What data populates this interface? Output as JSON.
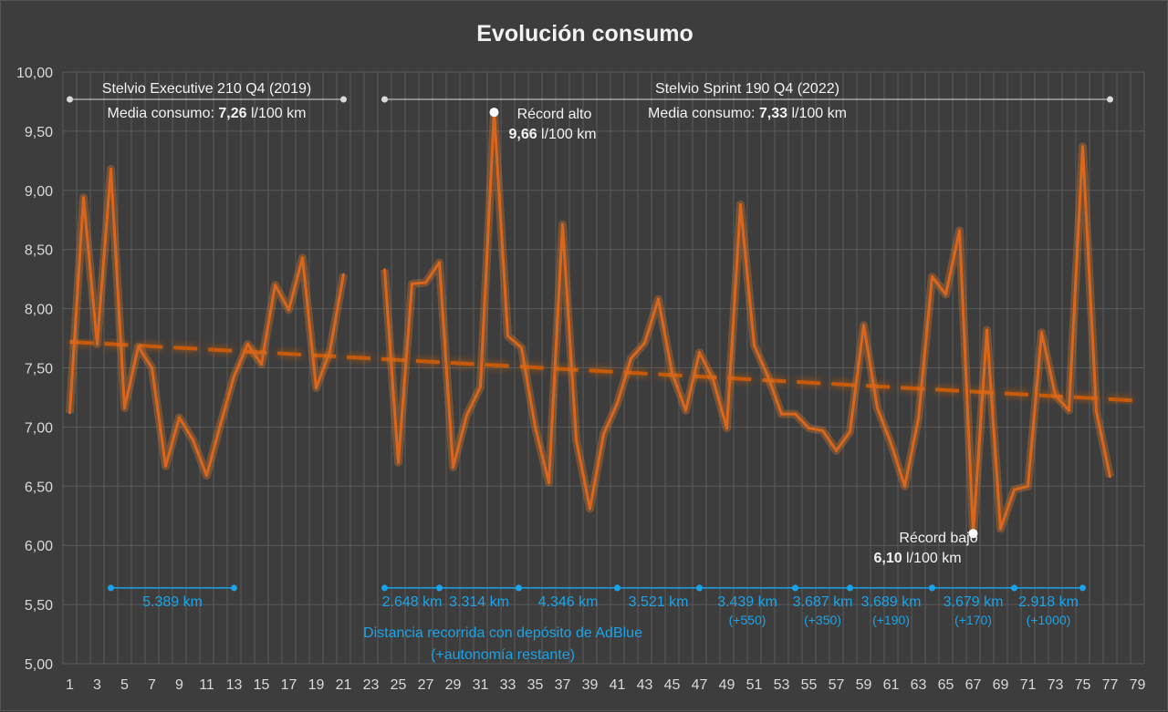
{
  "chart_data": {
    "type": "line",
    "title": "Evolución consumo",
    "ylim": [
      5.0,
      10.0
    ],
    "y_ticks": [
      "5,00",
      "5,50",
      "6,00",
      "6,50",
      "7,00",
      "7,50",
      "8,00",
      "8,50",
      "9,00",
      "9,50",
      "10,00"
    ],
    "x_ticks": [
      "1",
      "3",
      "5",
      "7",
      "9",
      "11",
      "13",
      "15",
      "17",
      "19",
      "21",
      "23",
      "25",
      "27",
      "29",
      "31",
      "33",
      "35",
      "37",
      "39",
      "41",
      "43",
      "45",
      "47",
      "49",
      "51",
      "53",
      "55",
      "57",
      "59",
      "61",
      "63",
      "65",
      "67",
      "69",
      "71",
      "73",
      "75",
      "77",
      "79"
    ],
    "x_range": [
      1,
      79
    ],
    "grid": true,
    "series": [
      {
        "segment": 1,
        "x": [
          1,
          2,
          3,
          4,
          5,
          6,
          7,
          8,
          9,
          10,
          11,
          12,
          13,
          14,
          15,
          16,
          17,
          18,
          19,
          20,
          21
        ],
        "values": [
          7.12,
          8.94,
          7.7,
          9.18,
          7.16,
          7.68,
          7.5,
          6.67,
          7.08,
          6.89,
          6.59,
          7.02,
          7.43,
          7.7,
          7.53,
          8.2,
          7.99,
          8.43,
          7.33,
          7.64,
          8.29
        ]
      },
      {
        "segment": 2,
        "x": [
          24,
          25,
          26,
          27,
          28,
          29,
          30,
          31,
          32,
          33,
          34,
          35,
          36,
          37,
          38,
          39,
          40,
          41,
          42,
          43,
          44,
          45,
          46,
          47,
          48,
          49,
          50,
          51,
          52,
          53,
          54,
          55,
          56,
          57,
          58,
          59,
          60,
          61,
          62,
          63,
          64,
          65,
          66,
          67,
          68,
          69,
          70,
          71,
          72,
          73,
          74,
          75,
          76,
          77
        ],
        "values": [
          8.33,
          6.7,
          8.21,
          8.22,
          8.39,
          6.66,
          7.1,
          7.34,
          9.66,
          7.77,
          7.67,
          7.0,
          6.53,
          8.71,
          6.89,
          6.31,
          6.94,
          7.2,
          7.58,
          7.71,
          8.08,
          7.46,
          7.14,
          7.63,
          7.4,
          6.99,
          8.88,
          7.69,
          7.43,
          7.11,
          7.11,
          6.99,
          6.97,
          6.8,
          6.96,
          7.86,
          7.16,
          6.86,
          6.5,
          7.07,
          8.27,
          8.12,
          8.66,
          6.1,
          7.82,
          6.14,
          6.47,
          6.5,
          7.8,
          7.27,
          7.14,
          9.37,
          7.13,
          6.58
        ]
      }
    ],
    "trendline": {
      "x": [
        1,
        79
      ],
      "values": [
        7.72,
        7.22
      ]
    },
    "annotations": {
      "car1": {
        "label": "Stelvio Executive 210 Q4 (2019)",
        "avg_prefix": "Media consumo: ",
        "avg_value": "7,26",
        "avg_unit": " l/100 km",
        "x_from": 1,
        "x_to": 21
      },
      "car2": {
        "label": "Stelvio Sprint 190 Q4 (2022)",
        "avg_prefix": "Media consumo: ",
        "avg_value": "7,33",
        "avg_unit": " l/100 km",
        "x_from": 24,
        "x_to": 77
      },
      "record_high": {
        "label": "Récord alto",
        "value": "9,66",
        "unit": " l/100 km",
        "x": 32,
        "y": 9.66
      },
      "record_low": {
        "label": "Récord bajo",
        "value": "6,10",
        "unit": " l/100 km",
        "x": 67,
        "y": 6.1
      }
    },
    "adblue": {
      "caption_line1": "Distancia recorrida con depósito de AdBlue",
      "caption_line2": "(+autonomía restante)",
      "y": 5.64,
      "segments": [
        {
          "x_from": 4,
          "x_to": 13,
          "distance": "5.389 km",
          "extra": ""
        },
        {
          "x_from": 24,
          "x_to": 28,
          "distance": "2.648 km",
          "extra": ""
        },
        {
          "x_from": 28,
          "x_to": 33.8,
          "distance": "3.314 km",
          "extra": ""
        },
        {
          "x_from": 33.8,
          "x_to": 41,
          "distance": "4.346 km",
          "extra": ""
        },
        {
          "x_from": 41,
          "x_to": 47,
          "distance": "3.521 km",
          "extra": ""
        },
        {
          "x_from": 47,
          "x_to": 54,
          "distance": "3.439 km",
          "extra": "(+550)"
        },
        {
          "x_from": 54,
          "x_to": 58,
          "distance": "3.687 km",
          "extra": "(+350)"
        },
        {
          "x_from": 58,
          "x_to": 64,
          "distance": "3.689 km",
          "extra": "(+190)"
        },
        {
          "x_from": 64,
          "x_to": 70,
          "distance": "3.679 km",
          "extra": "(+170)"
        },
        {
          "x_from": 70,
          "x_to": 75,
          "distance": "2.918 km",
          "extra": "(+1000)"
        }
      ]
    },
    "colors": {
      "line": "#d9661c",
      "glow": "#e07a2a",
      "trend": "#c55a11",
      "adblue": "#1aa3e8",
      "background": "#3d3d3d",
      "grid": "#5a5a5a"
    }
  }
}
